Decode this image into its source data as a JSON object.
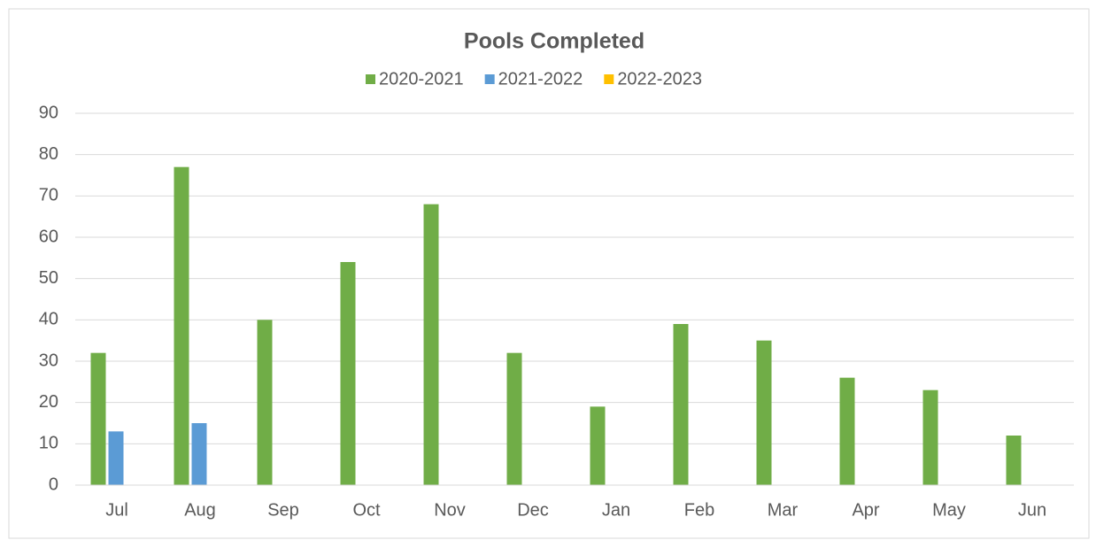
{
  "chart_data": {
    "type": "bar",
    "title": "Pools Completed",
    "categories": [
      "Jul",
      "Aug",
      "Sep",
      "Oct",
      "Nov",
      "Dec",
      "Jan",
      "Feb",
      "Mar",
      "Apr",
      "May",
      "Jun"
    ],
    "series": [
      {
        "name": "2020-2021",
        "color": "#70ad47",
        "values": [
          32,
          77,
          40,
          54,
          68,
          32,
          19,
          39,
          35,
          26,
          23,
          12
        ]
      },
      {
        "name": "2021-2022",
        "color": "#5b9bd5",
        "values": [
          13,
          15,
          null,
          null,
          null,
          null,
          null,
          null,
          null,
          null,
          null,
          null
        ]
      },
      {
        "name": "2022-2023",
        "color": "#ffc000",
        "values": [
          null,
          null,
          null,
          null,
          null,
          null,
          null,
          null,
          null,
          null,
          null,
          null
        ]
      }
    ],
    "ylim": [
      0,
      90
    ],
    "yticks": [
      0,
      10,
      20,
      30,
      40,
      50,
      60,
      70,
      80,
      90
    ],
    "grid": true,
    "legend": "top"
  }
}
